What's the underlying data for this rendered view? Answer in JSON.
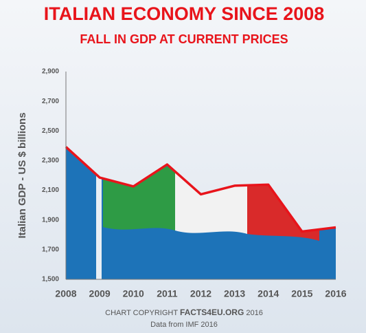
{
  "chart_data": {
    "type": "area",
    "title": "ITALIAN ECONOMY SINCE 2008",
    "subtitle": "FALL IN GDP AT CURRENT PRICES",
    "y_label": "Italian GDP - US $ billions",
    "x": [
      2008,
      2009,
      2010,
      2011,
      2012,
      2013,
      2014,
      2015,
      2016
    ],
    "values": [
      2392,
      2186,
      2126,
      2274,
      2073,
      2131,
      2138,
      1822,
      1850
    ],
    "xlim": [
      2008,
      2016
    ],
    "xticks": [
      2008,
      2009,
      2010,
      2011,
      2012,
      2013,
      2014,
      2015,
      2016
    ],
    "ylim": [
      1500,
      2900
    ],
    "yticks": [
      {
        "value": 1500,
        "label": "1,500"
      },
      {
        "value": 1700,
        "label": "1,700"
      },
      {
        "value": 1900,
        "label": "1,900"
      },
      {
        "value": 2100,
        "label": "2,100"
      },
      {
        "value": 2300,
        "label": "2,300"
      },
      {
        "value": 2500,
        "label": "2,500"
      },
      {
        "value": 2700,
        "label": "2,700"
      },
      {
        "value": 2900,
        "label": "2,900"
      }
    ],
    "line_color": "#e8141b",
    "fill_color": "#1d73b8",
    "grid": false,
    "footer": [
      "CHART COPYRIGHT",
      "FACTS4EU.ORG",
      "2016"
    ],
    "source": "Data from IMF 2016"
  }
}
